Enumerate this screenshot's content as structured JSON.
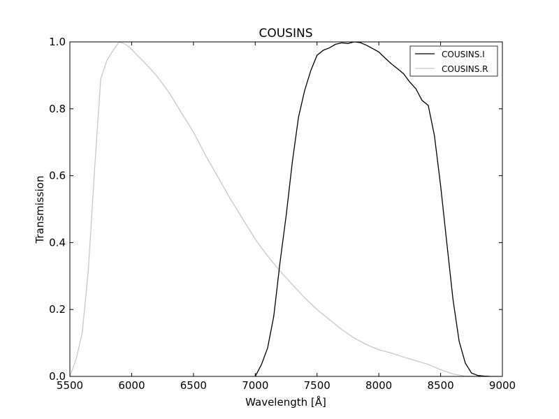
{
  "chart_data": {
    "type": "line",
    "title": "COUSINS",
    "xlabel": "Wavelength [Å]",
    "ylabel": "Transmission",
    "xlim": [
      5500,
      9000
    ],
    "ylim": [
      0.0,
      1.0
    ],
    "xticks": [
      5500,
      6000,
      6500,
      7000,
      7500,
      8000,
      8500,
      9000
    ],
    "xtick_labels": [
      "5500",
      "6000",
      "6500",
      "7000",
      "7500",
      "8000",
      "8500",
      "9000"
    ],
    "yticks": [
      0.0,
      0.2,
      0.4,
      0.6,
      0.8,
      1.0
    ],
    "ytick_labels": [
      "0.0",
      "0.2",
      "0.4",
      "0.6",
      "0.8",
      "1.0"
    ],
    "grid": false,
    "legend_position": "top-right",
    "series": [
      {
        "name": "COUSINS.I",
        "color": "#000000",
        "x": [
          7000,
          7050,
          7100,
          7150,
          7200,
          7250,
          7300,
          7350,
          7400,
          7450,
          7500,
          7550,
          7600,
          7650,
          7700,
          7750,
          7800,
          7850,
          7900,
          7950,
          8000,
          8050,
          8100,
          8150,
          8200,
          8250,
          8300,
          8350,
          8400,
          8450,
          8500,
          8550,
          8600,
          8650,
          8700,
          8750,
          8800,
          8850,
          8900
        ],
        "y": [
          0.0,
          0.035,
          0.085,
          0.18,
          0.34,
          0.48,
          0.64,
          0.775,
          0.855,
          0.915,
          0.96,
          0.975,
          0.982,
          0.993,
          0.997,
          0.995,
          1.0,
          0.998,
          0.99,
          0.98,
          0.97,
          0.952,
          0.935,
          0.92,
          0.905,
          0.88,
          0.86,
          0.825,
          0.81,
          0.72,
          0.57,
          0.4,
          0.23,
          0.105,
          0.04,
          0.01,
          0.003,
          0.001,
          0.0
        ]
      },
      {
        "name": "COUSINS.R",
        "color": "#c8c8c8",
        "x": [
          5500,
          5550,
          5600,
          5650,
          5700,
          5750,
          5800,
          5850,
          5900,
          5950,
          6000,
          6050,
          6100,
          6200,
          6300,
          6400,
          6500,
          6600,
          6700,
          6800,
          6900,
          7000,
          7100,
          7200,
          7300,
          7400,
          7500,
          7600,
          7700,
          7800,
          7900,
          8000,
          8100,
          8200,
          8300,
          8400,
          8500,
          8600,
          8700,
          8800,
          8900,
          9000
        ],
        "y": [
          0.0,
          0.05,
          0.13,
          0.32,
          0.62,
          0.89,
          0.945,
          0.975,
          1.0,
          0.993,
          0.978,
          0.958,
          0.94,
          0.9,
          0.85,
          0.79,
          0.73,
          0.66,
          0.595,
          0.53,
          0.47,
          0.41,
          0.36,
          0.315,
          0.275,
          0.235,
          0.2,
          0.17,
          0.14,
          0.115,
          0.095,
          0.08,
          0.07,
          0.058,
          0.047,
          0.036,
          0.02,
          0.007,
          0.001,
          0.0,
          0.0,
          0.0
        ]
      }
    ]
  }
}
